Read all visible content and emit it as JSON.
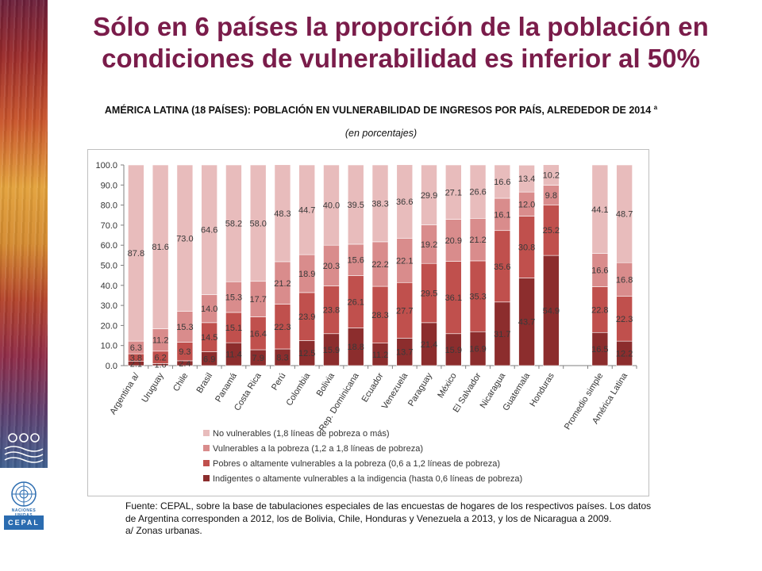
{
  "page": {
    "title_line1": "Sólo en 6 países la proporción de la población en",
    "title_line2": "condiciones de vulnerabilidad es inferior al 50%",
    "logo_icons": [
      "wave-motif-logo",
      "un-emblem-logo"
    ],
    "un_label": "NACIONES UNIDAS",
    "cepal_label": "CEPAL"
  },
  "chart_data": {
    "type": "bar",
    "stacked": true,
    "title": "AMÉRICA LATINA (18 PAÍSES): POBLACIÓN EN VULNERABILIDAD DE INGRESOS POR PAÍS, ALREDEDOR DE 2014",
    "title_sup": "a",
    "subtitle": "(en porcentajes)",
    "ylim": [
      0,
      100
    ],
    "yticks": [
      "0.0",
      "10.0",
      "20.0",
      "30.0",
      "40.0",
      "50.0",
      "60.0",
      "70.0",
      "80.0",
      "90.0",
      "100.0"
    ],
    "grid": false,
    "legend_position": "bottom",
    "categories": [
      "Argentina a/",
      "Uruguay",
      "Chile",
      "Brasil",
      "Panamá",
      "Costa Rica",
      "Perú",
      "Colombia",
      "Bolivia",
      "Rep. Dominicana",
      "Ecuador",
      "Venezuela",
      "Paraguay",
      "México",
      "El Salvador",
      "Nicaragua",
      "Guatemala",
      "Honduras",
      "",
      "Promedio simple",
      "América Latina"
    ],
    "series": [
      {
        "name": "Indigentes o altamente vulnerables a la indigencia (hasta 0,6 líneas de pobreza)",
        "color": "#8c2d2d",
        "values": [
          2.1,
          1.0,
          2.4,
          6.9,
          11.4,
          7.9,
          8.3,
          12.5,
          15.9,
          18.8,
          11.2,
          13.7,
          21.4,
          15.9,
          16.9,
          31.7,
          43.7,
          54.9,
          null,
          16.5,
          12.2
        ],
        "labels": [
          "2.1",
          "1.0",
          "2.4",
          "6.9",
          "11.4",
          "7.9",
          "8.3",
          "12.5",
          "15.9",
          "18.8",
          "11.2",
          "13.7",
          "21.4",
          "15.9",
          "16.9",
          "31.7",
          "43.7",
          "54.9",
          "",
          "16.5",
          "12.2"
        ]
      },
      {
        "name": "Pobres o altamente vulnerables a la pobreza (0,6 a 1,2 líneas de pobreza)",
        "color": "#c0504d",
        "values": [
          3.8,
          6.2,
          9.3,
          14.5,
          15.1,
          16.4,
          22.3,
          23.9,
          23.8,
          26.1,
          28.3,
          27.7,
          29.5,
          36.1,
          35.3,
          35.6,
          30.8,
          25.2,
          null,
          22.8,
          22.3
        ],
        "labels": [
          "3.8",
          "6.2",
          "9.3",
          "14.5",
          "15.1",
          "16.4",
          "22.3",
          "23.9",
          "23.8",
          "26.1",
          "28.3",
          "27.7",
          "29.5",
          "36.1",
          "35.3",
          "35.6",
          "30.8",
          "25.2",
          "",
          "22.8",
          "22.3"
        ]
      },
      {
        "name": "Vulnerables a la pobreza (1,2 a 1,8 líneas de pobreza)",
        "color": "#d98c8c",
        "values": [
          6.3,
          11.2,
          15.3,
          14.0,
          15.3,
          17.7,
          21.2,
          18.9,
          20.3,
          15.6,
          22.2,
          22.1,
          19.2,
          20.9,
          21.2,
          16.1,
          12.0,
          9.8,
          null,
          16.6,
          16.8
        ],
        "labels": [
          "6.3",
          "11.2",
          "15.3",
          "14.0",
          "15.3",
          "17.7",
          "21.2",
          "18.9",
          "20.3",
          "15.6",
          "22.2",
          "22.1",
          "19.2",
          "20.9",
          "21.2",
          "16.1",
          "12.0",
          "9.8",
          "",
          "16.6",
          "16.8"
        ]
      },
      {
        "name": "No vulnerables (1,8 líneas de pobreza o más)",
        "color": "#e8bcbc",
        "values": [
          87.8,
          81.6,
          73.0,
          64.6,
          58.2,
          58.0,
          48.3,
          44.7,
          40.0,
          39.5,
          38.3,
          36.6,
          29.9,
          27.1,
          26.6,
          16.6,
          13.4,
          10.2,
          null,
          44.1,
          48.7
        ],
        "labels": [
          "87.8",
          "81.6",
          "73.0",
          "64.6",
          "58.2",
          "58.0",
          "48.3",
          "44.7",
          "40.0",
          "39.5",
          "38.3",
          "36.6",
          "29.9",
          "27.1",
          "26.6",
          "16.6",
          "13.4",
          "10.2",
          "",
          "44.1",
          "48.7"
        ]
      }
    ],
    "legend_order": [
      3,
      2,
      1,
      0
    ]
  },
  "source": {
    "line1": "Fuente: CEPAL, sobre la base de tabulaciones especiales de las encuestas de hogares de los respectivos países. Los datos de Argentina corresponden a 2012, los de Bolivia, Chile, Honduras y Venezuela a 2013, y los de Nicaragua a 2009.",
    "line2": "a/ Zonas urbanas."
  }
}
